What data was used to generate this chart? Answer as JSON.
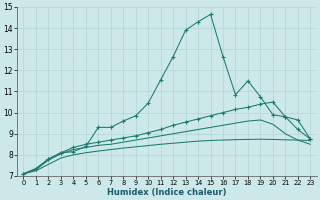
{
  "xlabel": "Humidex (Indice chaleur)",
  "bg_color": "#cce8e8",
  "line_color": "#1a7a6e",
  "grid_color": "#b0d4d4",
  "xlim": [
    0,
    23
  ],
  "ylim": [
    7,
    15
  ],
  "xticks": [
    0,
    1,
    2,
    3,
    4,
    5,
    6,
    7,
    8,
    9,
    10,
    11,
    12,
    13,
    14,
    15,
    16,
    17,
    18,
    19,
    20,
    21,
    22,
    23
  ],
  "yticks": [
    7,
    8,
    9,
    10,
    11,
    12,
    13,
    14,
    15
  ],
  "lines": [
    {
      "x": [
        0,
        1,
        2,
        3,
        4,
        5,
        6,
        7,
        8,
        9,
        10,
        11,
        12,
        13,
        14,
        15,
        16,
        17,
        18,
        19,
        20,
        21,
        22,
        23
      ],
      "y": [
        7.1,
        7.35,
        7.8,
        8.1,
        8.15,
        8.4,
        9.3,
        9.3,
        9.6,
        9.85,
        10.45,
        11.55,
        12.65,
        13.9,
        14.3,
        14.65,
        12.65,
        10.85,
        11.5,
        10.75,
        9.9,
        9.8,
        9.65,
        8.75
      ],
      "has_markers": true
    },
    {
      "x": [
        0,
        1,
        2,
        3,
        4,
        5,
        6,
        7,
        8,
        9,
        10,
        11,
        12,
        13,
        14,
        15,
        16,
        17,
        18,
        19,
        20,
        21,
        22,
        23
      ],
      "y": [
        7.1,
        7.35,
        7.8,
        8.1,
        8.35,
        8.5,
        8.6,
        8.7,
        8.8,
        8.9,
        9.05,
        9.2,
        9.4,
        9.55,
        9.7,
        9.85,
        10.0,
        10.15,
        10.25,
        10.4,
        10.5,
        9.8,
        9.2,
        8.75
      ],
      "has_markers": true
    },
    {
      "x": [
        0,
        1,
        2,
        3,
        4,
        5,
        6,
        7,
        8,
        9,
        10,
        11,
        12,
        13,
        14,
        15,
        16,
        17,
        18,
        19,
        20,
        21,
        22,
        23
      ],
      "y": [
        7.1,
        7.3,
        7.75,
        8.05,
        8.25,
        8.35,
        8.45,
        8.5,
        8.6,
        8.7,
        8.8,
        8.9,
        9.0,
        9.1,
        9.2,
        9.3,
        9.4,
        9.5,
        9.6,
        9.65,
        9.45,
        9.0,
        8.7,
        8.5
      ],
      "has_markers": false
    },
    {
      "x": [
        0,
        1,
        2,
        3,
        4,
        5,
        6,
        7,
        8,
        9,
        10,
        11,
        12,
        13,
        14,
        15,
        16,
        17,
        18,
        19,
        20,
        21,
        22,
        23
      ],
      "y": [
        7.1,
        7.25,
        7.55,
        7.85,
        8.0,
        8.1,
        8.18,
        8.25,
        8.32,
        8.38,
        8.44,
        8.5,
        8.55,
        8.6,
        8.65,
        8.68,
        8.7,
        8.72,
        8.73,
        8.74,
        8.73,
        8.71,
        8.7,
        8.68
      ],
      "has_markers": false
    }
  ]
}
